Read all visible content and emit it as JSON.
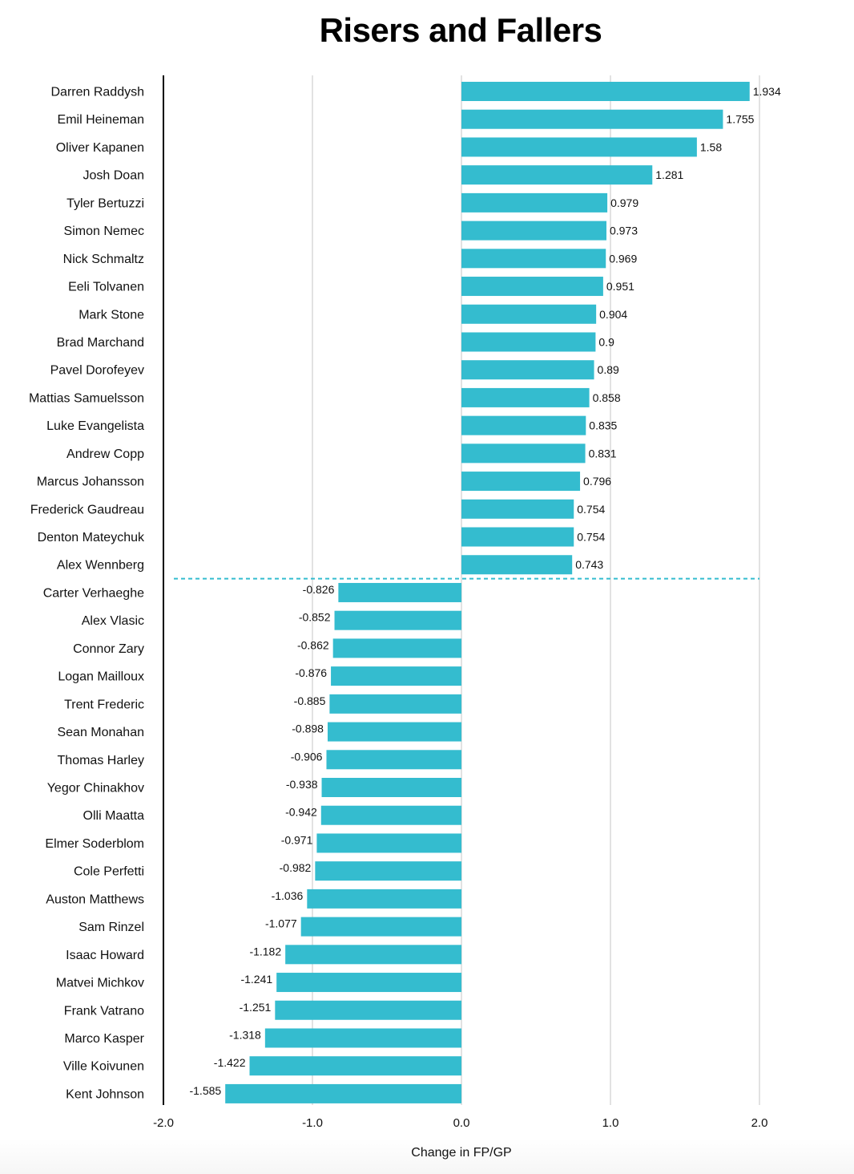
{
  "chart_data": {
    "type": "bar",
    "orientation": "horizontal",
    "title": "Risers and Fallers",
    "xlabel": "Change in FP/GP",
    "ylabel": "",
    "xlim": [
      -2.0,
      2.0
    ],
    "xticks": [
      -2.0,
      -1.0,
      0.0,
      1.0,
      2.0
    ],
    "xtick_labels": [
      "-2.0",
      "-1.0",
      "0.0",
      "1.0",
      "2.0"
    ],
    "grid": "vertical",
    "legend": "none",
    "bar_color": "#34bccf",
    "separator": {
      "style": "dashed",
      "color": "#34bccf",
      "between_index": [
        17,
        18
      ]
    },
    "categories": [
      "Darren Raddysh",
      "Emil Heineman",
      "Oliver Kapanen",
      "Josh Doan",
      "Tyler Bertuzzi",
      "Simon Nemec",
      "Nick Schmaltz",
      "Eeli Tolvanen",
      "Mark Stone",
      "Brad Marchand",
      "Pavel Dorofeyev",
      "Mattias Samuelsson",
      "Luke Evangelista",
      "Andrew Copp",
      "Marcus Johansson",
      "Frederick Gaudreau",
      "Denton Mateychuk",
      "Alex Wennberg",
      "Carter Verhaeghe",
      "Alex Vlasic",
      "Connor Zary",
      "Logan Mailloux",
      "Trent Frederic",
      "Sean Monahan",
      "Thomas Harley",
      "Yegor Chinakhov",
      "Olli Maatta",
      "Elmer Soderblom",
      "Cole Perfetti",
      "Auston Matthews",
      "Sam Rinzel",
      "Isaac Howard",
      "Matvei Michkov",
      "Frank Vatrano",
      "Marco Kasper",
      "Ville Koivunen",
      "Kent Johnson"
    ],
    "values": [
      1.934,
      1.755,
      1.58,
      1.281,
      0.979,
      0.973,
      0.969,
      0.951,
      0.904,
      0.9,
      0.89,
      0.858,
      0.835,
      0.831,
      0.796,
      0.754,
      0.754,
      0.743,
      -0.826,
      -0.852,
      -0.862,
      -0.876,
      -0.885,
      -0.898,
      -0.906,
      -0.938,
      -0.942,
      -0.971,
      -0.982,
      -1.036,
      -1.077,
      -1.182,
      -1.241,
      -1.251,
      -1.318,
      -1.422,
      -1.585
    ],
    "value_labels": [
      "1.934",
      "1.755",
      "1.58",
      "1.281",
      "0.979",
      "0.973",
      "0.969",
      "0.951",
      "0.904",
      "0.9",
      "0.89",
      "0.858",
      "0.835",
      "0.831",
      "0.796",
      "0.754",
      "0.754",
      "0.743",
      "-0.826",
      "-0.852",
      "-0.862",
      "-0.876",
      "-0.885",
      "-0.898",
      "-0.906",
      "-0.938",
      "-0.942",
      "-0.971",
      "-0.982",
      "-1.036",
      "-1.077",
      "-1.182",
      "-1.241",
      "-1.251",
      "-1.318",
      "-1.422",
      "-1.585"
    ]
  }
}
